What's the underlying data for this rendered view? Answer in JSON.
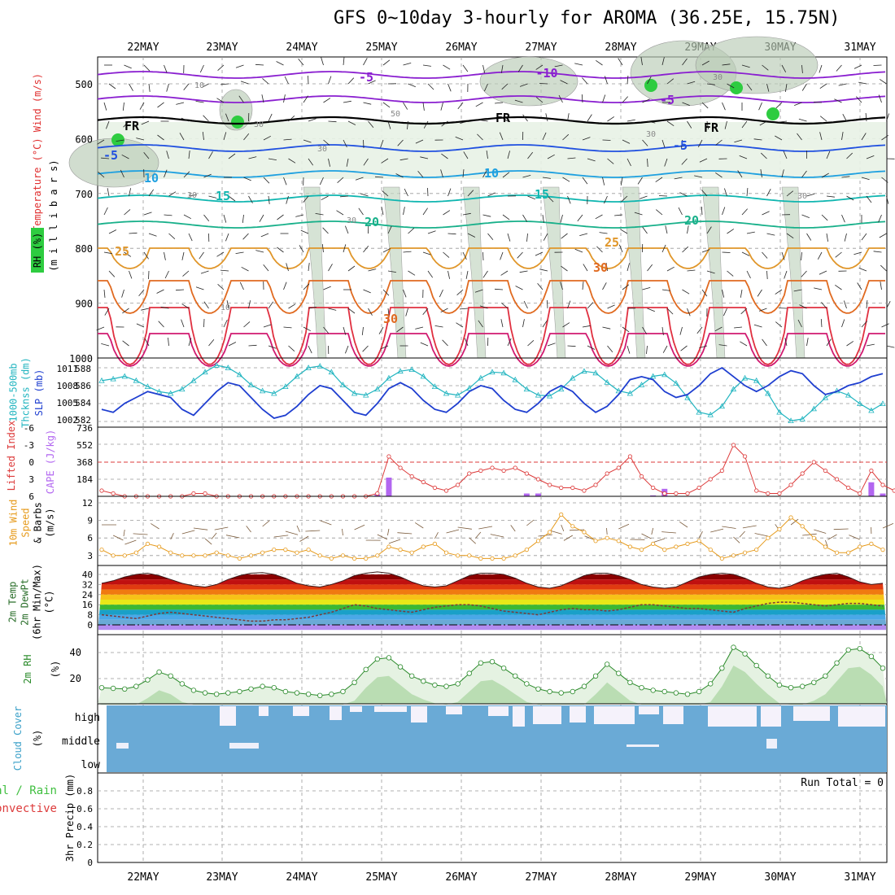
{
  "title": "GFS 0~10day 3-hourly for AROMA (36.25E, 15.75N)",
  "colors": {
    "rh_green": "#2ecc40",
    "temp_red": "#e41a1c",
    "temp_blue": "#1f3fd0",
    "thick_cyan": "#22b5c0",
    "cape_purple": "#b266f0",
    "li_red": "#dd3b3b",
    "wind_orange": "#e69a1b",
    "rh2m_green": "#2a8a2a",
    "cloud_blue": "#6aaad6",
    "precip_green": "#3fbf3f"
  },
  "chart_data": [
    {
      "panel": "upper-air",
      "type": "contour",
      "ylabels": [
        "Wind (m/s)",
        "Temperature (°C)",
        "RH (%)",
        "(m i l l i b a r s)"
      ],
      "yticks": [
        "500",
        "600",
        "700",
        "800",
        "900",
        "1000"
      ],
      "xticks": [
        "22MAY",
        "23MAY",
        "24MAY",
        "25MAY",
        "26MAY",
        "27MAY",
        "28MAY",
        "29MAY",
        "30MAY",
        "31MAY"
      ],
      "contour_labels": [
        "-10",
        "-5",
        "-5",
        "FR",
        "FR",
        "FR",
        "-5",
        "-5",
        "10",
        "10",
        "15",
        "15",
        "20",
        "20",
        "25",
        "25",
        "30",
        "30"
      ],
      "rh_labels": [
        "10",
        "30",
        "50",
        "30",
        "30",
        "30",
        "30",
        "10",
        "30",
        "30"
      ]
    },
    {
      "panel": "slp-thickness",
      "type": "line",
      "ylabels": [
        "1000-500mb",
        "Thcknss (dm)",
        "SLP (mb)"
      ],
      "left_ticks": [
        "588",
        "586",
        "584",
        "582"
      ],
      "right_ticks": [
        "1011",
        "1008",
        "1005",
        "1002"
      ],
      "series": [
        {
          "name": "SLP (mb)",
          "values": [
            1004,
            1003.5,
            1005,
            1006,
            1007,
            1006.5,
            1006,
            1004,
            1003,
            1005,
            1007,
            1008.5,
            1008,
            1006,
            1004,
            1002.5,
            1003,
            1004.5,
            1006.5,
            1008,
            1007.5,
            1005.5,
            1003.5,
            1003,
            1005,
            1007.5,
            1008.5,
            1007.5,
            1005.5,
            1004,
            1003.5,
            1005,
            1007,
            1008,
            1007.5,
            1005.5,
            1004,
            1003.5,
            1005,
            1007,
            1008,
            1007,
            1005,
            1003.5,
            1004.5,
            1006.5,
            1009,
            1009.5,
            1009,
            1007,
            1006,
            1006.5,
            1008,
            1010,
            1011,
            1009.5,
            1008,
            1007,
            1008,
            1009.5,
            1010.5,
            1010,
            1008,
            1006.5,
            1007,
            1008,
            1008.5,
            1009.5,
            1010
          ]
        },
        {
          "name": "Thickness (dm)",
          "values": [
            586.5,
            586.7,
            587,
            586.5,
            585.8,
            585.2,
            585,
            585.5,
            586.5,
            587.5,
            588.3,
            588,
            587.2,
            586,
            585.3,
            585,
            585.8,
            587,
            588,
            588.2,
            587.5,
            586,
            585,
            584.8,
            585.5,
            586.8,
            587.6,
            587.8,
            587,
            585.8,
            585,
            584.8,
            585.6,
            586.8,
            587.5,
            587.4,
            586.6,
            585.5,
            584.8,
            584.7,
            585.5,
            586.8,
            587.6,
            587.4,
            586.3,
            585.3,
            585,
            586,
            587,
            587.2,
            586.2,
            584.5,
            582.8,
            582.5,
            583.5,
            585.5,
            586.8,
            586.5,
            585,
            582.8,
            581.8,
            582,
            583.2,
            584.5,
            585.3,
            584.8,
            583.8,
            583,
            583.8
          ]
        }
      ]
    },
    {
      "panel": "cape-li",
      "type": "bar",
      "ylabels": [
        "Lifted Index",
        "CAPE (J/kg)"
      ],
      "left_ticks": [
        "-6",
        "-3",
        "0",
        "3",
        "6"
      ],
      "right_ticks": [
        "736",
        "552",
        "368",
        "184"
      ],
      "series": [
        {
          "name": "CAPE (J/kg)",
          "values": [
            0,
            0,
            0,
            0,
            0,
            0,
            0,
            0,
            0,
            0,
            0,
            0,
            0,
            0,
            0,
            0,
            0,
            0,
            0,
            0,
            0,
            0,
            0,
            0,
            20,
            200,
            0,
            0,
            0,
            0,
            0,
            0,
            0,
            0,
            0,
            0,
            0,
            30,
            30,
            0,
            0,
            0,
            0,
            0,
            0,
            0,
            0,
            0,
            10,
            80,
            0,
            0,
            0,
            0,
            0,
            0,
            0,
            0,
            0,
            0,
            0,
            0,
            0,
            0,
            0,
            0,
            0,
            150,
            30,
            0
          ]
        },
        {
          "name": "Lifted Index",
          "values": [
            5,
            5.5,
            6,
            6,
            6,
            6,
            6,
            6,
            5.5,
            5.5,
            6,
            6,
            6,
            6,
            6,
            6,
            6,
            6,
            6,
            6,
            6,
            6,
            6,
            6,
            5.5,
            -1,
            1,
            2.5,
            3.5,
            4.5,
            5,
            4,
            2,
            1.5,
            1,
            1.5,
            1,
            2,
            3,
            4,
            4.5,
            4.5,
            5,
            4,
            2,
            1,
            -1,
            2.5,
            4.5,
            5.5,
            5.5,
            5.5,
            4.5,
            3,
            1.5,
            -3,
            -1,
            5,
            5.5,
            5.5,
            4,
            2,
            0,
            1.5,
            3,
            4.5,
            5.5,
            1.5,
            4,
            5
          ]
        }
      ]
    },
    {
      "panel": "wind-10m",
      "type": "line",
      "ylabels": [
        "10m Wind",
        "Speed",
        "& Barbs",
        "(m/s)"
      ],
      "left_ticks": [
        "12",
        "9",
        "6",
        "3"
      ],
      "series": [
        {
          "name": "10m Wind Speed",
          "values": [
            4,
            3,
            3,
            3.5,
            5,
            4.5,
            3.5,
            3,
            3,
            3,
            3.5,
            3,
            2.5,
            3,
            3.5,
            4,
            4,
            3.5,
            4,
            3,
            2.5,
            3,
            2.5,
            2.5,
            3,
            4.5,
            4,
            3.5,
            4.5,
            5,
            3.5,
            3,
            3,
            2.5,
            2.5,
            2.5,
            3,
            4,
            5.5,
            7,
            10,
            8,
            7,
            5.5,
            6,
            5.5,
            4.5,
            4,
            5,
            4,
            4.5,
            5,
            5.5,
            4,
            2.5,
            3,
            3.5,
            4,
            6,
            7.5,
            9.5,
            8,
            6,
            4.5,
            3.5,
            3.5,
            4.5,
            5,
            4
          ]
        }
      ]
    },
    {
      "panel": "temp-2m",
      "type": "area",
      "ylabels": [
        "2m Temp",
        "2m DewPt",
        "(6hr Min/Max)",
        "(°C)"
      ],
      "left_ticks": [
        "40",
        "32",
        "24",
        "16",
        "8",
        "0"
      ],
      "series": [
        {
          "name": "2m Temp",
          "values": [
            33,
            35,
            38,
            40,
            41,
            39,
            36,
            33,
            31,
            30,
            32,
            36,
            39,
            41,
            41.5,
            40,
            37,
            33,
            31,
            30,
            32,
            35,
            39,
            41,
            42,
            41,
            38,
            34,
            31,
            30,
            31,
            35,
            39,
            41,
            41,
            40,
            37,
            33,
            30,
            29,
            31,
            35,
            39,
            41,
            41,
            39,
            36,
            32,
            30,
            29,
            30,
            34,
            38,
            40,
            41,
            40,
            37,
            33,
            30,
            29,
            31,
            35,
            38,
            40,
            41,
            38,
            34,
            32,
            33
          ]
        },
        {
          "name": "2m DewPt",
          "values": [
            8,
            7,
            6,
            5,
            7,
            9,
            10,
            9,
            8,
            7,
            6,
            5,
            4,
            3,
            3,
            4,
            4,
            5,
            6,
            8,
            10,
            13,
            16,
            15,
            13,
            12,
            11,
            10,
            12,
            14,
            15,
            16,
            16,
            15,
            13,
            11,
            10,
            9,
            8,
            10,
            12,
            13,
            12,
            12,
            11,
            12,
            14,
            16,
            16,
            15,
            14,
            13,
            13,
            12,
            11,
            10,
            13,
            15,
            17,
            18,
            18,
            17,
            16,
            15,
            16,
            17,
            17,
            16,
            15
          ]
        }
      ]
    },
    {
      "panel": "rh-2m",
      "type": "area",
      "ylabels": [
        "2m RH",
        "(%)"
      ],
      "left_ticks": [
        "40",
        "20"
      ],
      "series": [
        {
          "name": "2m RH",
          "values": [
            13,
            12.5,
            12,
            14,
            19,
            25,
            22,
            16,
            11,
            9,
            8,
            9,
            10,
            12,
            14,
            13,
            10,
            9,
            8,
            7,
            8,
            10,
            17,
            27,
            35,
            36,
            29,
            22,
            18,
            15,
            14,
            16,
            24,
            32,
            33,
            28,
            22,
            16,
            12,
            10,
            9,
            10,
            14,
            22,
            31,
            24,
            17,
            13,
            11,
            10,
            9,
            8,
            10,
            16,
            28,
            44,
            39,
            30,
            22,
            15,
            13,
            14,
            17,
            22,
            32,
            42,
            43,
            37,
            28
          ]
        }
      ]
    },
    {
      "panel": "cloud-cover",
      "type": "bar",
      "ylabels": [
        "Cloud Cover",
        "(%)"
      ],
      "levels": [
        "high",
        "middle",
        "low"
      ]
    },
    {
      "panel": "precip",
      "type": "bar",
      "ylabels": [
        "Total / Rain",
        "Convective",
        "3hr Precip (mm)"
      ],
      "left_ticks": [
        "0.8",
        "0.6",
        "0.4",
        "0.2",
        "0"
      ],
      "run_total": "Run Total = 0",
      "series": [
        {
          "name": "3hr Precip (mm)",
          "values": []
        }
      ]
    }
  ]
}
